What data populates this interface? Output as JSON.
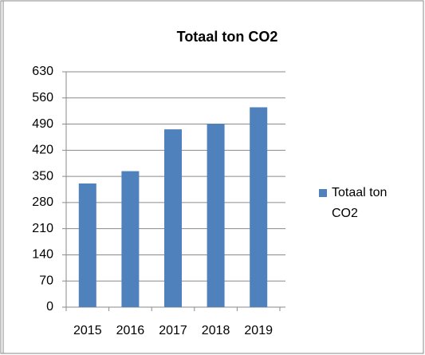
{
  "chart_data": {
    "type": "bar",
    "title": "Totaal ton CO2",
    "categories": [
      "2015",
      "2016",
      "2017",
      "2018",
      "2019"
    ],
    "series": [
      {
        "name": "Totaal ton CO2",
        "color": "#4f81bd",
        "values": [
          331,
          364,
          476,
          491,
          535
        ]
      }
    ],
    "ylim": [
      0,
      630
    ],
    "yticks": [
      0,
      70,
      140,
      210,
      280,
      350,
      420,
      490,
      560,
      630
    ],
    "grid": true,
    "legend": "right"
  }
}
